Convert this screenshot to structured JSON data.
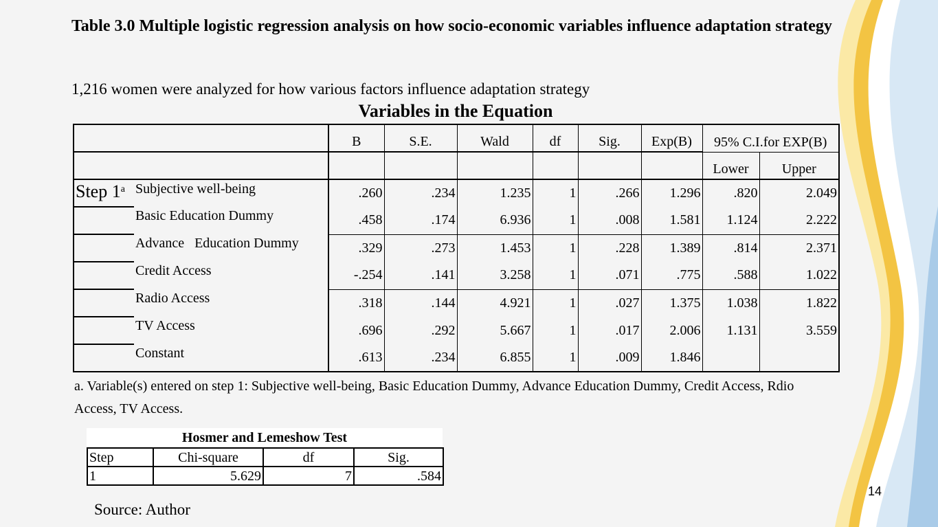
{
  "title": "Table 3.0 Multiple logistic regression analysis on how socio-economic variables influence adaptation strategy",
  "subtitle": "1,216 women were analyzed for  how various factors influence adaptation strategy",
  "equation_table": {
    "title": "Variables in the Equation",
    "headers": [
      "B",
      "S.E.",
      "Wald",
      "df",
      "Sig.",
      "Exp(B)",
      "95% C.I.for EXP(B)"
    ],
    "ci_headers": [
      "Lower",
      "Upper"
    ],
    "step_label": "Step 1",
    "step_superscript": "a",
    "rows": [
      {
        "variable": "Subjective well-being",
        "B": ".260",
        "SE": ".234",
        "Wald": "1.235",
        "df": "1",
        "Sig": ".266",
        "ExpB": "1.296",
        "Lower": ".820",
        "Upper": "2.049"
      },
      {
        "variable": "Basic Education Dummy",
        "B": ".458",
        "SE": ".174",
        "Wald": "6.936",
        "df": "1",
        "Sig": ".008",
        "ExpB": "1.581",
        "Lower": "1.124",
        "Upper": "2.222"
      },
      {
        "variable": "Advance   Education Dummy",
        "B": ".329",
        "SE": ".273",
        "Wald": "1.453",
        "df": "1",
        "Sig": ".228",
        "ExpB": "1.389",
        "Lower": ".814",
        "Upper": "2.371"
      },
      {
        "variable": "Credit Access",
        "B": "-.254",
        "SE": ".141",
        "Wald": "3.258",
        "df": "1",
        "Sig": ".071",
        "ExpB": ".775",
        "Lower": ".588",
        "Upper": "1.022"
      },
      {
        "variable": "Radio Access",
        "B": ".318",
        "SE": ".144",
        "Wald": "4.921",
        "df": "1",
        "Sig": ".027",
        "ExpB": "1.375",
        "Lower": "1.038",
        "Upper": "1.822"
      },
      {
        "variable": "TV Access",
        "B": ".696",
        "SE": ".292",
        "Wald": "5.667",
        "df": "1",
        "Sig": ".017",
        "ExpB": "2.006",
        "Lower": "1.131",
        "Upper": "3.559"
      },
      {
        "variable": "Constant",
        "B": ".613",
        "SE": ".234",
        "Wald": "6.855",
        "df": "1",
        "Sig": ".009",
        "ExpB": "1.846",
        "Lower": "",
        "Upper": ""
      }
    ]
  },
  "footnote": "a. Variable(s) entered on step 1: Subjective well-being, Basic Education Dummy, Advance Education Dummy, Credit Access, Rdio Access, TV Access.",
  "hosmer_lemeshow": {
    "title": "Hosmer and Lemeshow Test",
    "headers": [
      "Step",
      "Chi-square",
      "df",
      "Sig."
    ],
    "row": {
      "step": "1",
      "chi_square": "5.629",
      "df": "7",
      "sig": ".584"
    }
  },
  "source": "Source: Author",
  "page_number": "14",
  "colors": {
    "background": "#f4f4f4",
    "wave_yellow": "#f3c443",
    "wave_light_yellow": "#fbe9a6",
    "wave_blue": "#a9cbe8",
    "wave_light_blue": "#d8e8f5"
  }
}
